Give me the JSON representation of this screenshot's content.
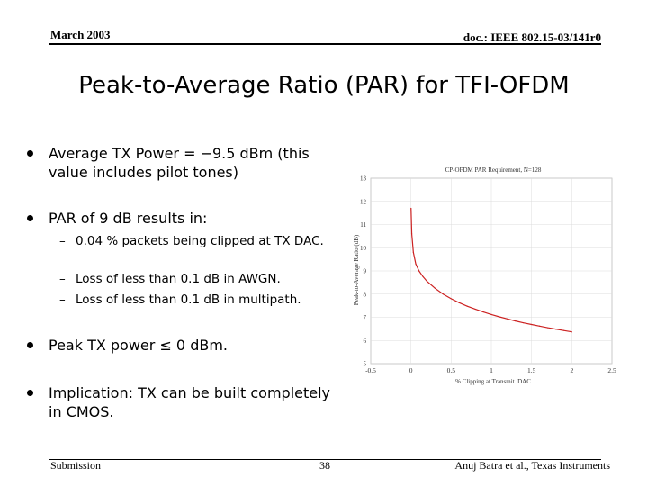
{
  "header": {
    "date": "March 2003",
    "doc_id": "doc.: IEEE 802.15-03/141r0"
  },
  "title": "Peak-to-Average Ratio (PAR) for TFI-OFDM",
  "bullets": [
    {
      "text": "Average TX Power = −9.5 dBm (this value includes pilot tones)"
    },
    {
      "text": "PAR of 9 dB results in:",
      "sub": [
        "0.04 % packets being clipped at TX DAC.",
        "Loss of less than 0.1 dB in AWGN.",
        "Loss of less than 0.1 dB in multipath."
      ]
    },
    {
      "text": "Peak TX power ≤ 0 dBm."
    },
    {
      "text": "Implication: TX can be built completely in CMOS."
    }
  ],
  "chart_data": {
    "type": "line",
    "title": "CP-OFDM PAR Requirement, N=128",
    "xlabel": "% Clipping at Transmit. DAC",
    "ylabel": "Peak-to-Average Ratio (dB)",
    "xlim": [
      -0.5,
      2.5
    ],
    "ylim": [
      5,
      13
    ],
    "xticks": [
      "-0.5",
      "0",
      "0.5",
      "1",
      "1.5",
      "2",
      "2.5"
    ],
    "yticks": [
      "5",
      "6",
      "7",
      "8",
      "9",
      "10",
      "11",
      "12",
      "13"
    ],
    "grid": true,
    "line_color": "#cc2222",
    "series": [
      {
        "x": [
          0.001,
          0.01,
          0.03,
          0.06,
          0.1,
          0.15,
          0.2,
          0.3,
          0.4,
          0.5,
          0.6,
          0.7,
          0.8,
          0.9,
          1.0,
          1.1,
          1.2,
          1.3,
          1.4,
          1.5,
          1.6,
          1.7,
          1.8,
          1.9,
          2.0
        ],
        "values": [
          11.7,
          10.6,
          9.8,
          9.3,
          9.0,
          8.75,
          8.55,
          8.25,
          8.0,
          7.8,
          7.63,
          7.48,
          7.35,
          7.23,
          7.12,
          7.02,
          6.93,
          6.84,
          6.76,
          6.69,
          6.62,
          6.55,
          6.49,
          6.43,
          6.37
        ]
      }
    ]
  },
  "footer": {
    "left": "Submission",
    "page": "38",
    "right": "Anuj Batra et al., Texas Instruments"
  }
}
